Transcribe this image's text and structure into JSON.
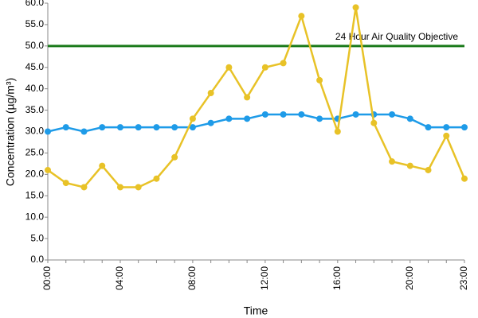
{
  "chart_data": {
    "type": "line",
    "x_label": "Time",
    "y_label": "Concentration (µg/m³)",
    "categories": [
      "00:00",
      null,
      null,
      null,
      "04:00",
      null,
      null,
      null,
      "08:00",
      null,
      null,
      null,
      "12:00",
      null,
      null,
      null,
      "16:00",
      null,
      null,
      null,
      "20:00",
      null,
      null,
      "23:00"
    ],
    "series": [
      {
        "color": "#1e9be8",
        "values": [
          30,
          31,
          30,
          31,
          31,
          31,
          31,
          31,
          31,
          32,
          33,
          33,
          34,
          34,
          34,
          33,
          33,
          34,
          34,
          34,
          33,
          31,
          31,
          31
        ]
      },
      {
        "color": "#e8c227",
        "values": [
          21,
          18,
          17,
          22,
          17,
          17,
          19,
          24,
          33,
          39,
          45,
          38,
          45,
          46,
          57,
          42,
          30,
          59,
          32,
          23,
          22,
          21,
          29,
          19
        ]
      }
    ],
    "reference_line": {
      "value": 50,
      "label": "24 Hour Air Quality Objective",
      "color": "#1a7a1a"
    },
    "ylim": [
      0,
      60
    ],
    "yticks": [
      {
        "value": 0,
        "label": "0.0"
      },
      {
        "value": 5,
        "label": "5.0"
      },
      {
        "value": 10,
        "label": "10.0"
      },
      {
        "value": 15,
        "label": "15.0"
      },
      {
        "value": 20,
        "label": "20.0"
      },
      {
        "value": 25,
        "label": "25.0"
      },
      {
        "value": 30,
        "label": "30.0"
      },
      {
        "value": 35,
        "label": "35.0"
      },
      {
        "value": 40,
        "label": "40.0"
      },
      {
        "value": 45,
        "label": "45.0"
      },
      {
        "value": 50,
        "label": "50.0"
      },
      {
        "value": 55,
        "label": "55.0"
      },
      {
        "value": 60,
        "label": "60.0"
      }
    ],
    "grid": false
  }
}
